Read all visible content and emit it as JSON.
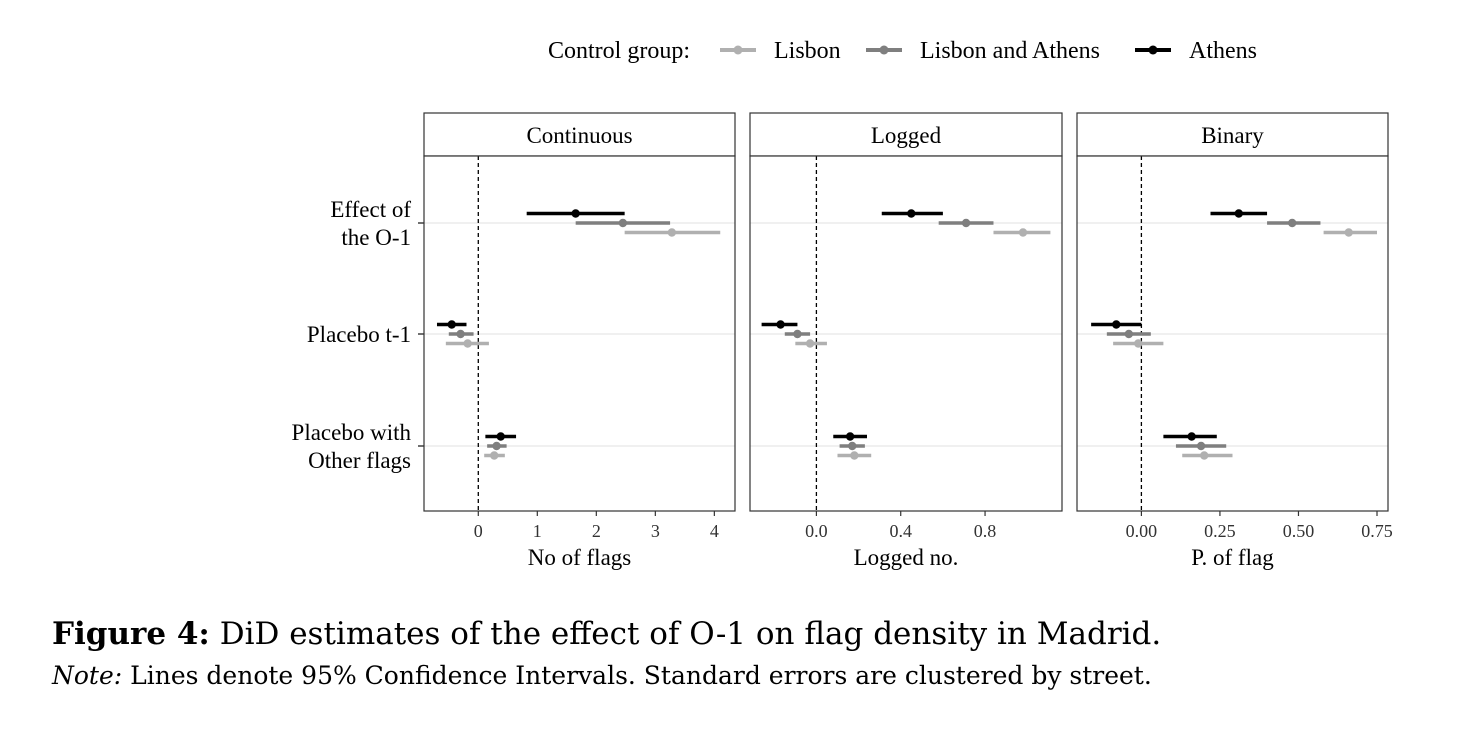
{
  "figure": {
    "label": "Figure 4:",
    "caption": "DiD estimates of the effect of O-1 on flag density in Madrid.",
    "note_label": "Note:",
    "note_text": "Lines denote 95% Confidence Intervals. Standard errors are clustered by street."
  },
  "chart_data": {
    "type": "scatter",
    "subtype": "coefficient-plot-with-confidence-intervals",
    "legend": {
      "title": "Control group:",
      "position": "top",
      "entries": [
        "Lisbon",
        "Lisbon and Athens",
        "Athens"
      ]
    },
    "series_colors": {
      "Lisbon": "#b0b0b0",
      "Lisbon and Athens": "#7f7f7f",
      "Athens": "#000000"
    },
    "categories": [
      "Effect of\nthe O-1",
      "Placebo t-1",
      "Placebo with\nOther flags"
    ],
    "reference_line": 0,
    "panels": [
      {
        "title": "Continuous",
        "xlabel": "No of flags",
        "xlim": [
          -0.92,
          4.35
        ],
        "xticks": [
          0,
          1,
          2,
          3,
          4
        ],
        "xtick_labels": [
          "0",
          "1",
          "2",
          "3",
          "4"
        ],
        "series": [
          {
            "name": "Athens",
            "estimates": [
              1.65,
              -0.45,
              0.38
            ],
            "ci_low": [
              0.82,
              -0.7,
              0.12
            ],
            "ci_high": [
              2.48,
              -0.2,
              0.64
            ]
          },
          {
            "name": "Lisbon and Athens",
            "estimates": [
              2.45,
              -0.3,
              0.31
            ],
            "ci_low": [
              1.65,
              -0.5,
              0.15
            ],
            "ci_high": [
              3.25,
              -0.08,
              0.48
            ]
          },
          {
            "name": "Lisbon",
            "estimates": [
              3.28,
              -0.18,
              0.27
            ],
            "ci_low": [
              2.48,
              -0.55,
              0.1
            ],
            "ci_high": [
              4.1,
              0.18,
              0.45
            ]
          }
        ]
      },
      {
        "title": "Logged",
        "xlabel": "Logged no.",
        "xlim": [
          -0.315,
          1.165
        ],
        "xticks": [
          0,
          0.4,
          0.8
        ],
        "xtick_labels": [
          "0.0",
          "0.4",
          "0.8"
        ],
        "series": [
          {
            "name": "Athens",
            "estimates": [
              0.45,
              -0.17,
              0.16
            ],
            "ci_low": [
              0.31,
              -0.26,
              0.08
            ],
            "ci_high": [
              0.6,
              -0.09,
              0.24
            ]
          },
          {
            "name": "Lisbon and Athens",
            "estimates": [
              0.71,
              -0.09,
              0.17
            ],
            "ci_low": [
              0.58,
              -0.15,
              0.11
            ],
            "ci_high": [
              0.84,
              -0.03,
              0.23
            ]
          },
          {
            "name": "Lisbon",
            "estimates": [
              0.98,
              -0.03,
              0.18
            ],
            "ci_low": [
              0.84,
              -0.1,
              0.1
            ],
            "ci_high": [
              1.11,
              0.05,
              0.26
            ]
          }
        ]
      },
      {
        "title": "Binary",
        "xlabel": "P. of flag",
        "xlim": [
          -0.205,
          0.785
        ],
        "xticks": [
          0,
          0.25,
          0.5,
          0.75
        ],
        "xtick_labels": [
          "0.00",
          "0.25",
          "0.50",
          "0.75"
        ],
        "series": [
          {
            "name": "Athens",
            "estimates": [
              0.31,
              -0.08,
              0.16
            ],
            "ci_low": [
              0.22,
              -0.16,
              0.07
            ],
            "ci_high": [
              0.4,
              0.0,
              0.24
            ]
          },
          {
            "name": "Lisbon and Athens",
            "estimates": [
              0.48,
              -0.04,
              0.19
            ],
            "ci_low": [
              0.4,
              -0.11,
              0.11
            ],
            "ci_high": [
              0.57,
              0.03,
              0.27
            ]
          },
          {
            "name": "Lisbon",
            "estimates": [
              0.66,
              -0.01,
              0.2
            ],
            "ci_low": [
              0.58,
              -0.09,
              0.13
            ],
            "ci_high": [
              0.75,
              0.07,
              0.29
            ]
          }
        ]
      }
    ]
  }
}
